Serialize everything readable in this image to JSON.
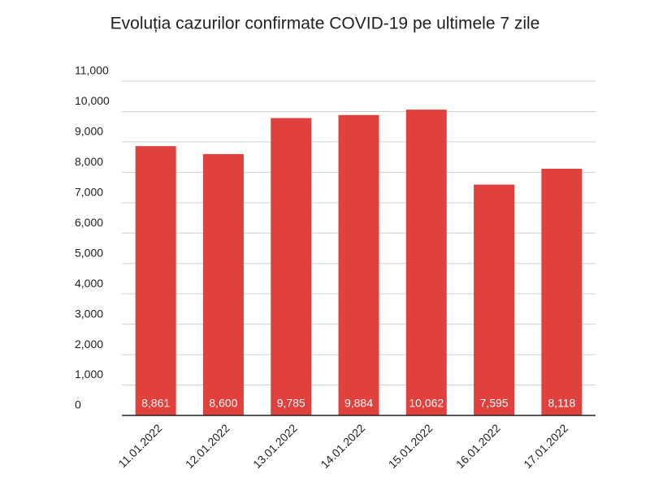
{
  "chart_data": {
    "type": "bar",
    "title": "Evoluția cazurilor confirmate COVID-19 pe ultimele 7 zile",
    "categories": [
      "11.01.2022",
      "12.01.2022",
      "13.01.2022",
      "14.01.2022",
      "15.01.2022",
      "16.01.2022",
      "17.01.2022"
    ],
    "values": [
      8861,
      8600,
      9785,
      9884,
      10062,
      7595,
      8118
    ],
    "value_labels": [
      "8,861",
      "8,600",
      "9,785",
      "9,884",
      "10,062",
      "7,595",
      "8,118"
    ],
    "color": "#e0413d",
    "ylim": [
      0,
      11000
    ],
    "yticks": [
      0,
      {
        "value": 1000,
        "label": "1,000"
      },
      {
        "value": 2000,
        "label": "2,000"
      },
      {
        "value": 3000,
        "label": "3,000"
      },
      {
        "value": 4000,
        "label": "4,000"
      },
      {
        "value": 5000,
        "label": "5,000"
      },
      {
        "value": 6000,
        "label": "6,000"
      },
      {
        "value": 7000,
        "label": "7,000"
      },
      {
        "value": 8000,
        "label": "8,000"
      },
      {
        "value": 9000,
        "label": "9,000"
      },
      {
        "value": 10000,
        "label": "10,000"
      },
      {
        "value": 11000,
        "label": "11,000"
      }
    ],
    "grid": true
  }
}
